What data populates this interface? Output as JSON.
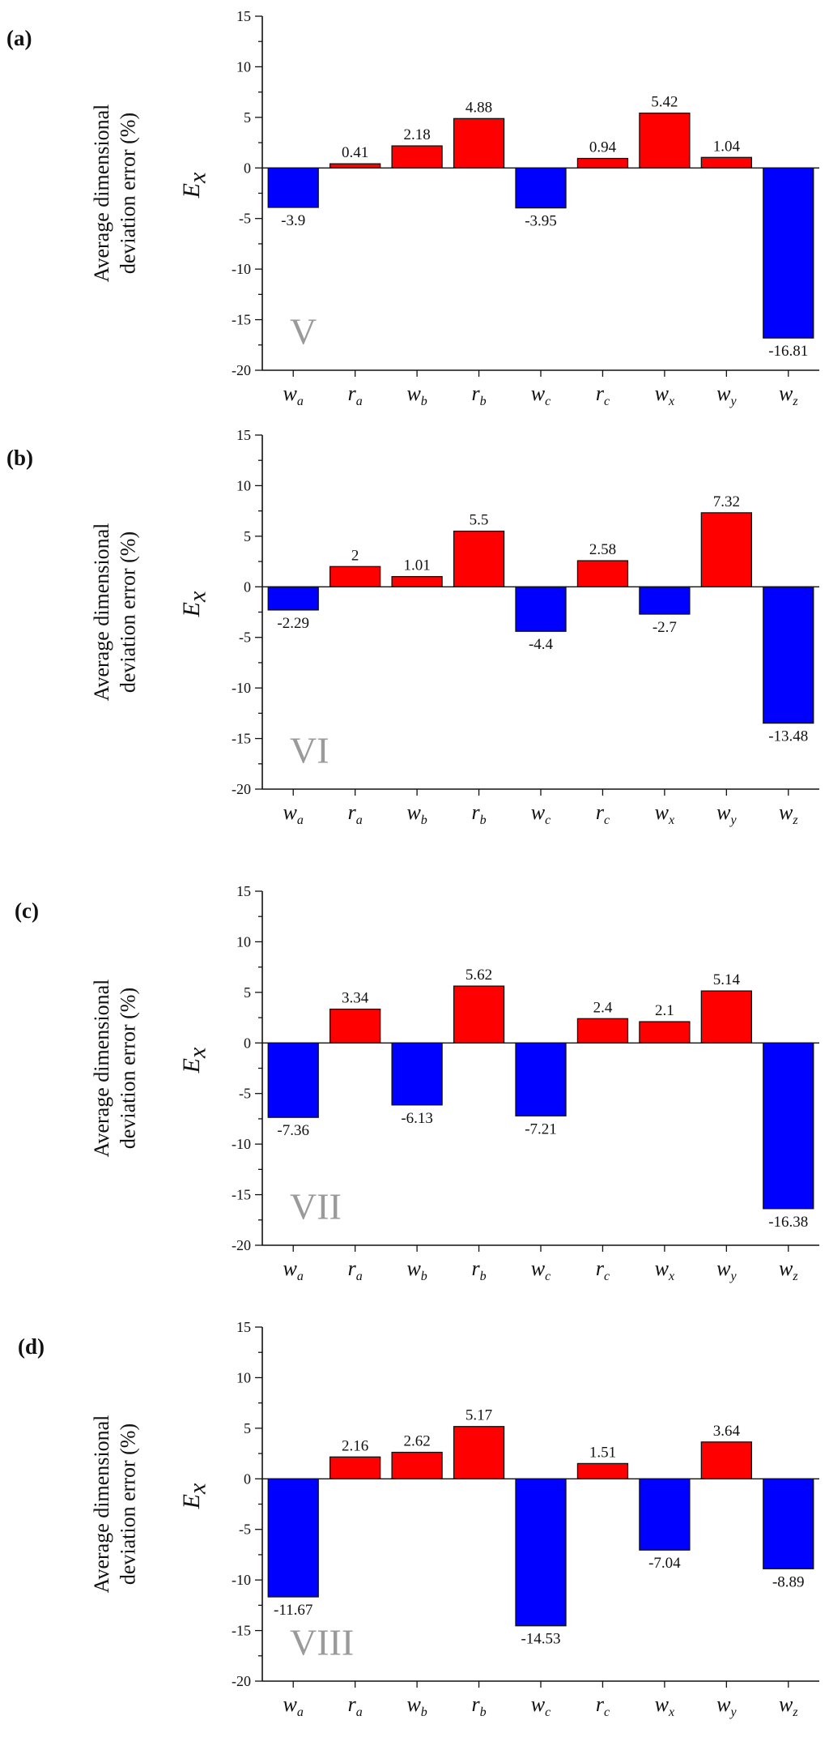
{
  "chart_data": [
    {
      "type": "bar",
      "panel_label": "(a)",
      "annotation": "V",
      "ylabel": "Average dimensional deviation error (%)",
      "ylabel_symbol": "E",
      "ylabel_subscript": "x",
      "ylim": [
        -20,
        15
      ],
      "yticks": [
        15,
        10,
        5,
        0,
        -5,
        -10,
        -15,
        -20
      ],
      "categories": [
        {
          "base": "w",
          "sub": "a"
        },
        {
          "base": "r",
          "sub": "a"
        },
        {
          "base": "w",
          "sub": "b"
        },
        {
          "base": "r",
          "sub": "b"
        },
        {
          "base": "w",
          "sub": "c"
        },
        {
          "base": "r",
          "sub": "c"
        },
        {
          "base": "w",
          "sub": "x"
        },
        {
          "base": "w",
          "sub": "y"
        },
        {
          "base": "w",
          "sub": "z"
        }
      ],
      "values": [
        -3.9,
        0.41,
        2.18,
        4.88,
        -3.95,
        0.94,
        5.42,
        1.04,
        -16.81
      ],
      "colors": {
        "positive": "#ff0000",
        "negative": "#0000ff"
      }
    },
    {
      "type": "bar",
      "panel_label": "(b)",
      "annotation": "VI",
      "ylabel": "Average dimensional deviation error (%)",
      "ylabel_symbol": "E",
      "ylabel_subscript": "x",
      "ylim": [
        -20,
        15
      ],
      "yticks": [
        15,
        10,
        5,
        0,
        -5,
        -10,
        -15,
        -20
      ],
      "categories": [
        {
          "base": "w",
          "sub": "a"
        },
        {
          "base": "r",
          "sub": "a"
        },
        {
          "base": "w",
          "sub": "b"
        },
        {
          "base": "r",
          "sub": "b"
        },
        {
          "base": "w",
          "sub": "c"
        },
        {
          "base": "r",
          "sub": "c"
        },
        {
          "base": "w",
          "sub": "x"
        },
        {
          "base": "w",
          "sub": "y"
        },
        {
          "base": "w",
          "sub": "z"
        }
      ],
      "values": [
        -2.29,
        2,
        1.01,
        5.5,
        -4.4,
        2.58,
        -2.7,
        7.32,
        -13.48
      ],
      "colors": {
        "positive": "#ff0000",
        "negative": "#0000ff"
      }
    },
    {
      "type": "bar",
      "panel_label": "(c)",
      "annotation": "VII",
      "ylabel": "Average dimensional deviation error (%)",
      "ylabel_symbol": "E",
      "ylabel_subscript": "x",
      "ylim": [
        -20,
        15
      ],
      "yticks": [
        15,
        10,
        5,
        0,
        -5,
        -10,
        -15,
        -20
      ],
      "categories": [
        {
          "base": "w",
          "sub": "a"
        },
        {
          "base": "r",
          "sub": "a"
        },
        {
          "base": "w",
          "sub": "b"
        },
        {
          "base": "r",
          "sub": "b"
        },
        {
          "base": "w",
          "sub": "c"
        },
        {
          "base": "r",
          "sub": "c"
        },
        {
          "base": "w",
          "sub": "x"
        },
        {
          "base": "w",
          "sub": "y"
        },
        {
          "base": "w",
          "sub": "z"
        }
      ],
      "values": [
        -7.36,
        3.34,
        -6.13,
        5.62,
        -7.21,
        2.4,
        2.1,
        5.14,
        -16.38
      ],
      "colors": {
        "positive": "#ff0000",
        "negative": "#0000ff"
      }
    },
    {
      "type": "bar",
      "panel_label": "(d)",
      "annotation": "VIII",
      "ylabel": "Average dimensional deviation error (%)",
      "ylabel_symbol": "E",
      "ylabel_subscript": "x",
      "ylim": [
        -20,
        15
      ],
      "yticks": [
        15,
        10,
        5,
        0,
        -5,
        -10,
        -15,
        -20
      ],
      "categories": [
        {
          "base": "w",
          "sub": "a"
        },
        {
          "base": "r",
          "sub": "a"
        },
        {
          "base": "w",
          "sub": "b"
        },
        {
          "base": "r",
          "sub": "b"
        },
        {
          "base": "w",
          "sub": "c"
        },
        {
          "base": "r",
          "sub": "c"
        },
        {
          "base": "w",
          "sub": "x"
        },
        {
          "base": "w",
          "sub": "y"
        },
        {
          "base": "w",
          "sub": "z"
        }
      ],
      "values": [
        -11.67,
        2.16,
        2.62,
        5.17,
        -14.53,
        1.51,
        -7.04,
        3.64,
        -8.89
      ],
      "colors": {
        "positive": "#ff0000",
        "negative": "#0000ff"
      }
    }
  ]
}
